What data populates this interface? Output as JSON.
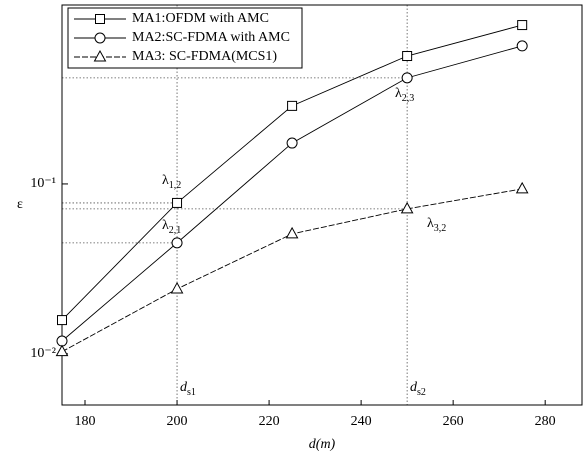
{
  "chart_data": {
    "type": "line",
    "xlabel": "d(m)",
    "ylabel": "ε",
    "log_y": true,
    "x": [
      175,
      200,
      225,
      250,
      275
    ],
    "series": [
      {
        "name": "MA1:OFDM with AMC",
        "color": "#000000",
        "marker": "square",
        "dashed": false,
        "values": [
          0.0158,
          0.0773,
          0.288,
          0.566,
          0.861
        ]
      },
      {
        "name": "MA2:SC-FDMA with AMC",
        "color": "#000000",
        "marker": "circle",
        "dashed": false,
        "values": [
          0.0119,
          0.045,
          0.174,
          0.421,
          0.649
        ]
      },
      {
        "name": "MA3: SC-FDMA(MCS1)",
        "color": "#000000",
        "marker": "triangle",
        "dashed": true,
        "values": [
          0.0103,
          0.0241,
          0.0508,
          0.0713,
          0.0935
        ]
      }
    ],
    "xlim": [
      175,
      288
    ],
    "xticks": [
      180,
      200,
      220,
      240,
      260,
      280
    ],
    "ylim": [
      0.005,
      1.13
    ],
    "yticks": [
      {
        "value": 0.01,
        "label": "10⁻²"
      },
      {
        "value": 0.1,
        "label": "10⁻¹"
      }
    ],
    "annotations": [
      {
        "text": "λ",
        "sub": "1,2"
      },
      {
        "text": "λ",
        "sub": "2,1"
      },
      {
        "text": "λ",
        "sub": "2,3"
      },
      {
        "text": "λ",
        "sub": "3,2"
      },
      {
        "text": "d",
        "sub": "s1"
      },
      {
        "text": "d",
        "sub": "s2"
      }
    ],
    "legend": "upper left"
  }
}
